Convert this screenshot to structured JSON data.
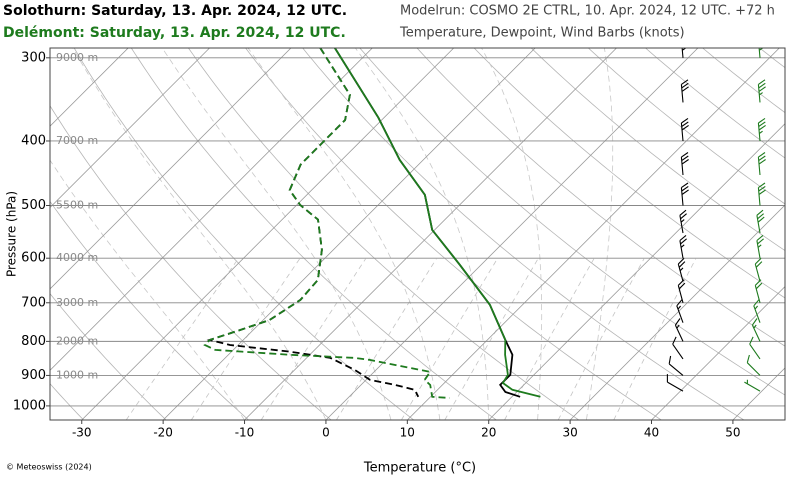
{
  "chart_data": {
    "type": "skew-t",
    "title": "Modelrun: COSMO 2E CTRL, 10. Apr. 2024, 12 UTC. +72 h",
    "subtitle": "Temperature, Dewpoint, Wind Barbs (knots)",
    "x_label": "Temperature (°C)",
    "y_label": "Pressure (hPa)",
    "footer": "© Meteoswiss (2024)",
    "xlim": [
      -33.9,
      56.4
    ],
    "xticks": [
      -30,
      -20,
      -10,
      0,
      10,
      20,
      30,
      40,
      50
    ],
    "ylim": [
      1050,
      290
    ],
    "yticks": [
      300,
      400,
      500,
      600,
      700,
      800,
      900,
      1000
    ],
    "log_y": true,
    "altitude_labels": [
      "9000 m",
      "7000 m",
      "5500 m",
      "4000 m",
      "3000 m",
      "2000 m",
      "1000 m",
      null
    ],
    "stations": [
      {
        "name": "Solothurn: Saturday, 13. Apr. 2024, 12 UTC.",
        "color": "#000000",
        "temperature": {
          "pressure": [
            290,
            369,
            427,
            482,
            544,
            614,
            705,
            796,
            838,
            898,
            930,
            953,
            969
          ],
          "values": [
            -44.6,
            -30.7,
            -22.9,
            -15.5,
            -10.3,
            -2.6,
            6.0,
            12.2,
            14.9,
            17.1,
            17.1,
            18.6,
            21.0
          ]
        },
        "dewpoint": {
          "pressure": [
            290,
            341,
            372,
            398,
            434,
            474,
            499,
            525,
            583,
            647,
            693,
            743,
            769,
            796,
            810,
            829,
            847,
            883,
            914,
            930,
            946,
            969
          ],
          "values": [
            -46.4,
            -37.0,
            -34.5,
            -34.5,
            -34.5,
            -32.7,
            -29.6,
            -25.6,
            -21.4,
            -18.2,
            -17.9,
            -19.2,
            -21.6,
            -24.1,
            -21.0,
            -12.8,
            -7.1,
            -2.6,
            0.5,
            4.2,
            7.2,
            8.5
          ]
        },
        "wind": {
          "pressure": [
            950,
            900,
            850,
            800,
            750,
            700,
            650,
            600,
            550,
            500,
            450,
            400,
            350,
            300
          ],
          "speed": [
            10,
            10,
            10,
            15,
            15,
            20,
            25,
            25,
            25,
            30,
            30,
            30,
            30,
            35
          ],
          "direction": [
            300,
            310,
            325,
            335,
            340,
            345,
            345,
            350,
            350,
            355,
            355,
            355,
            355,
            355
          ]
        }
      },
      {
        "name": "Delémont: Saturday, 13. Apr. 2024, 12 UTC.",
        "color": "#1e7b1e",
        "temperature": {
          "pressure": [
            290,
            369,
            427,
            482,
            544,
            614,
            705,
            796,
            838,
            898,
            924,
            946,
            969
          ],
          "values": [
            -44.6,
            -30.7,
            -22.9,
            -15.5,
            -10.3,
            -2.6,
            6.0,
            12.2,
            14.0,
            16.8,
            17.2,
            19.2,
            23.5
          ]
        },
        "dewpoint": {
          "pressure": [
            290,
            341,
            372,
            398,
            434,
            474,
            499,
            525,
            583,
            647,
            693,
            743,
            769,
            796,
            810,
            824,
            838,
            847,
            853,
            889,
            914,
            930,
            969,
            973
          ],
          "values": [
            -46.4,
            -37.0,
            -34.5,
            -34.5,
            -34.5,
            -32.7,
            -29.6,
            -25.6,
            -21.4,
            -18.2,
            -17.9,
            -19.2,
            -21.6,
            -24.1,
            -24.1,
            -22.2,
            -12.4,
            -4.1,
            -2.0,
            6.9,
            7.2,
            8.5,
            10.2,
            12.5
          ]
        },
        "wind": {
          "pressure": [
            950,
            900,
            850,
            800,
            750,
            700,
            650,
            600,
            550,
            500,
            450,
            400,
            350,
            300
          ],
          "speed": [
            5,
            10,
            10,
            15,
            15,
            20,
            20,
            25,
            30,
            30,
            30,
            35,
            35,
            35
          ],
          "direction": [
            300,
            315,
            325,
            335,
            340,
            345,
            345,
            350,
            350,
            355,
            355,
            355,
            355,
            355
          ]
        }
      }
    ]
  }
}
